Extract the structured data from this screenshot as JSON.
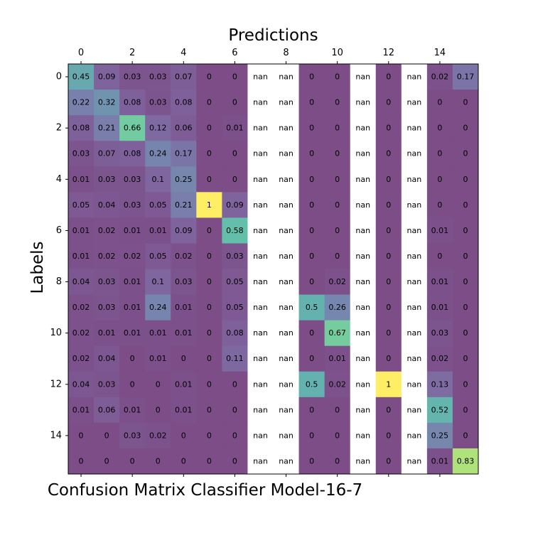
{
  "chart_data": {
    "type": "heatmap",
    "title": "Predictions",
    "xlabel": "Confusion Matrix Classifier Model-16-7",
    "ylabel": "Labels",
    "x_ticks": [
      "0",
      "2",
      "4",
      "6",
      "8",
      "10",
      "12",
      "14"
    ],
    "y_ticks": [
      "0",
      "2",
      "4",
      "6",
      "8",
      "10",
      "12",
      "14"
    ],
    "colormap": "viridis",
    "cell_alpha": 0.7,
    "vmin": 0.0,
    "vmax": 1.0,
    "nan_color": "#ffffff",
    "matrix": [
      [
        0.45,
        0.09,
        0.03,
        0.03,
        0.07,
        0.0,
        0.0,
        null,
        null,
        0.0,
        0.0,
        null,
        0.0,
        null,
        0.02,
        0.17
      ],
      [
        0.22,
        0.32,
        0.08,
        0.03,
        0.08,
        0.0,
        0.0,
        null,
        null,
        0.0,
        0.0,
        null,
        0.0,
        null,
        0.0,
        0.0
      ],
      [
        0.08,
        0.21,
        0.66,
        0.12,
        0.06,
        0.0,
        0.01,
        null,
        null,
        0.0,
        0.0,
        null,
        0.0,
        null,
        0.0,
        0.0
      ],
      [
        0.03,
        0.07,
        0.08,
        0.24,
        0.17,
        0.0,
        0.0,
        null,
        null,
        0.0,
        0.0,
        null,
        0.0,
        null,
        0.0,
        0.0
      ],
      [
        0.01,
        0.03,
        0.03,
        0.1,
        0.25,
        0.0,
        0.0,
        null,
        null,
        0.0,
        0.0,
        null,
        0.0,
        null,
        0.0,
        0.0
      ],
      [
        0.05,
        0.04,
        0.03,
        0.05,
        0.21,
        1.0,
        0.09,
        null,
        null,
        0.0,
        0.0,
        null,
        0.0,
        null,
        0.0,
        0.0
      ],
      [
        0.01,
        0.02,
        0.01,
        0.01,
        0.09,
        0.0,
        0.58,
        null,
        null,
        0.0,
        0.0,
        null,
        0.0,
        null,
        0.01,
        0.0
      ],
      [
        0.01,
        0.02,
        0.02,
        0.05,
        0.02,
        0.0,
        0.03,
        null,
        null,
        0.0,
        0.0,
        null,
        0.0,
        null,
        0.0,
        0.0
      ],
      [
        0.04,
        0.03,
        0.01,
        0.1,
        0.03,
        0.0,
        0.05,
        null,
        null,
        0.0,
        0.02,
        null,
        0.0,
        null,
        0.01,
        0.0
      ],
      [
        0.02,
        0.03,
        0.01,
        0.24,
        0.01,
        0.0,
        0.05,
        null,
        null,
        0.5,
        0.26,
        null,
        0.0,
        null,
        0.01,
        0.0
      ],
      [
        0.02,
        0.01,
        0.01,
        0.01,
        0.01,
        0.0,
        0.08,
        null,
        null,
        0.0,
        0.67,
        null,
        0.0,
        null,
        0.03,
        0.0
      ],
      [
        0.02,
        0.04,
        0.0,
        0.01,
        0.0,
        0.0,
        0.11,
        null,
        null,
        0.0,
        0.01,
        null,
        0.0,
        null,
        0.02,
        0.0
      ],
      [
        0.04,
        0.03,
        0.0,
        0.0,
        0.01,
        0.0,
        0.0,
        null,
        null,
        0.5,
        0.02,
        null,
        1.0,
        null,
        0.13,
        0.0
      ],
      [
        0.01,
        0.06,
        0.01,
        0.0,
        0.01,
        0.0,
        0.0,
        null,
        null,
        0.0,
        0.0,
        null,
        0.0,
        null,
        0.52,
        0.0
      ],
      [
        0.0,
        0.0,
        0.03,
        0.02,
        0.0,
        0.0,
        0.0,
        null,
        null,
        0.0,
        0.0,
        null,
        0.0,
        null,
        0.25,
        0.0
      ],
      [
        0.0,
        0.0,
        0.0,
        0.0,
        0.0,
        0.0,
        0.0,
        null,
        null,
        0.0,
        0.0,
        null,
        0.0,
        null,
        0.01,
        0.83
      ]
    ],
    "nan_label": "nan"
  }
}
